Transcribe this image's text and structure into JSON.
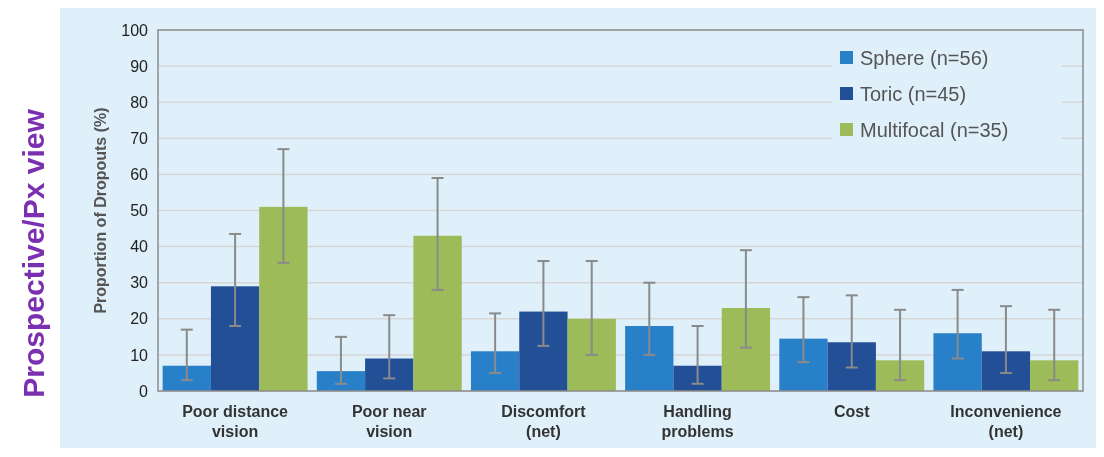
{
  "chart_data": {
    "type": "bar",
    "ylabel": "Proportion of Dropouts (%)",
    "categories": [
      "Poor distance vision",
      "Poor near vision",
      "Discomfort (net)",
      "Handling problems",
      "Cost",
      "Inconvenience (net)"
    ],
    "series": [
      {
        "name": "Sphere (n=56)",
        "color": "#2880c8",
        "values": [
          7,
          5.5,
          11,
          18,
          14.5,
          16
        ],
        "errors": [
          [
            3,
            17
          ],
          [
            2,
            15
          ],
          [
            5,
            21.5
          ],
          [
            10,
            30
          ],
          [
            8,
            26
          ],
          [
            9,
            28
          ]
        ]
      },
      {
        "name": "Toric (n=45)",
        "color": "#224f96",
        "values": [
          29,
          9,
          22,
          7,
          13.5,
          11
        ],
        "errors": [
          [
            18,
            43.5
          ],
          [
            3.5,
            21
          ],
          [
            12.5,
            36
          ],
          [
            2,
            18
          ],
          [
            6.5,
            26.5
          ],
          [
            5,
            23.5
          ]
        ]
      },
      {
        "name": "Multifocal (n=35)",
        "color": "#9dbb58",
        "values": [
          51,
          43,
          20,
          23,
          8.5,
          8.5
        ],
        "errors": [
          [
            35.5,
            67
          ],
          [
            28,
            59
          ],
          [
            10,
            36
          ],
          [
            12,
            39
          ],
          [
            3,
            22.5
          ],
          [
            3,
            22.5
          ]
        ]
      }
    ],
    "ylim": [
      0,
      100
    ],
    "yticks": [
      0,
      10,
      20,
      30,
      40,
      50,
      60,
      70,
      80,
      90,
      100
    ],
    "grid": "y",
    "legend": "top right",
    "annotations": [
      "Prospective/Px view"
    ]
  }
}
